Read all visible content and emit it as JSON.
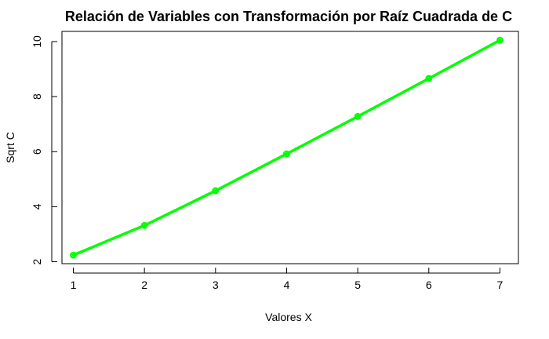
{
  "chart_data": {
    "type": "line",
    "title": "Relación de Variables con Transformación por Raíz Cuadrada de C",
    "xlabel": "Valores X",
    "ylabel": "Sqrt C",
    "x": [
      1,
      2,
      3,
      4,
      5,
      6,
      7
    ],
    "series": [
      {
        "values": [
          2.24,
          3.32,
          4.58,
          5.92,
          7.28,
          8.66,
          10.05
        ],
        "color": "#00ff00"
      }
    ],
    "xlim": [
      0.84,
      7.26
    ],
    "ylim": [
      1.93,
      10.37
    ],
    "xticks": [
      1,
      2,
      3,
      4,
      5,
      6,
      7
    ],
    "yticks": [
      2,
      4,
      6,
      8,
      10
    ],
    "grid": false,
    "legend": "none",
    "markers": "circle"
  }
}
